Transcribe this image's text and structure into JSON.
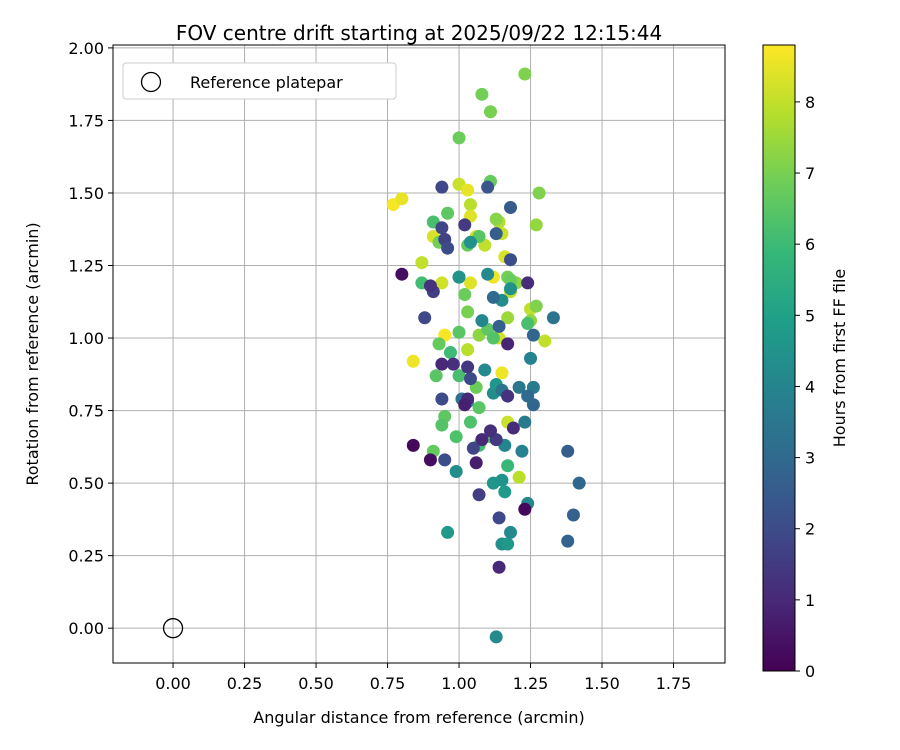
{
  "chart_data": {
    "type": "scatter",
    "title": "FOV centre drift starting at 2025/09/22 12:15:44",
    "xlabel": "Angular distance from reference (arcmin)",
    "ylabel": "Rotation from reference (arcmin)",
    "xlim": [
      -0.21,
      1.93
    ],
    "ylim": [
      -0.12,
      2.01
    ],
    "xticks": [
      "0.00",
      "0.25",
      "0.50",
      "0.75",
      "1.00",
      "1.25",
      "1.50",
      "1.75"
    ],
    "yticks": [
      "0.00",
      "0.25",
      "0.50",
      "0.75",
      "1.00",
      "1.25",
      "1.50",
      "1.75",
      "2.00"
    ],
    "grid": true,
    "legend": {
      "label": "Reference platepar",
      "location": "top-left"
    },
    "reference_point": {
      "x": 0.0,
      "y": 0.0
    },
    "colorbar": {
      "label": "Hours from first FF file",
      "colormap": "viridis",
      "range": [
        0,
        8.8
      ],
      "ticks": [
        "0",
        "1",
        "2",
        "3",
        "4",
        "5",
        "6",
        "7",
        "8"
      ]
    },
    "points": [
      {
        "x": 0.77,
        "y": 1.46,
        "t": 8.7
      },
      {
        "x": 0.8,
        "y": 1.48,
        "t": 8.5
      },
      {
        "x": 0.84,
        "y": 0.92,
        "t": 8.6
      },
      {
        "x": 0.87,
        "y": 1.26,
        "t": 8.0
      },
      {
        "x": 0.91,
        "y": 1.35,
        "t": 8.3
      },
      {
        "x": 0.94,
        "y": 1.19,
        "t": 8.2
      },
      {
        "x": 0.95,
        "y": 1.01,
        "t": 8.7
      },
      {
        "x": 1.0,
        "y": 1.53,
        "t": 8.1
      },
      {
        "x": 1.03,
        "y": 1.51,
        "t": 8.5
      },
      {
        "x": 1.04,
        "y": 1.46,
        "t": 7.9
      },
      {
        "x": 1.04,
        "y": 1.42,
        "t": 8.4
      },
      {
        "x": 1.06,
        "y": 1.35,
        "t": 8.2
      },
      {
        "x": 1.09,
        "y": 1.32,
        "t": 8.0
      },
      {
        "x": 1.12,
        "y": 1.21,
        "t": 8.6
      },
      {
        "x": 1.14,
        "y": 1.4,
        "t": 7.8
      },
      {
        "x": 1.15,
        "y": 1.36,
        "t": 8.1
      },
      {
        "x": 1.16,
        "y": 1.28,
        "t": 8.3
      },
      {
        "x": 1.18,
        "y": 1.16,
        "t": 8.0
      },
      {
        "x": 1.04,
        "y": 1.19,
        "t": 8.4
      },
      {
        "x": 1.03,
        "y": 0.96,
        "t": 7.9
      },
      {
        "x": 1.14,
        "y": 1.0,
        "t": 8.2
      },
      {
        "x": 1.15,
        "y": 0.88,
        "t": 8.6
      },
      {
        "x": 1.17,
        "y": 0.71,
        "t": 8.1
      },
      {
        "x": 1.21,
        "y": 0.52,
        "t": 7.9
      },
      {
        "x": 1.25,
        "y": 1.1,
        "t": 8.0
      },
      {
        "x": 1.3,
        "y": 0.99,
        "t": 8.0
      },
      {
        "x": 1.08,
        "y": 1.84,
        "t": 6.9
      },
      {
        "x": 1.11,
        "y": 1.78,
        "t": 7.0
      },
      {
        "x": 1.23,
        "y": 1.91,
        "t": 7.1
      },
      {
        "x": 1.0,
        "y": 1.69,
        "t": 6.8
      },
      {
        "x": 1.11,
        "y": 1.54,
        "t": 6.7
      },
      {
        "x": 1.28,
        "y": 1.5,
        "t": 7.1
      },
      {
        "x": 0.96,
        "y": 1.43,
        "t": 6.6
      },
      {
        "x": 1.27,
        "y": 1.39,
        "t": 7.4
      },
      {
        "x": 0.93,
        "y": 1.33,
        "t": 6.9
      },
      {
        "x": 1.03,
        "y": 1.32,
        "t": 6.7
      },
      {
        "x": 1.13,
        "y": 1.41,
        "t": 7.2
      },
      {
        "x": 1.17,
        "y": 1.21,
        "t": 6.9
      },
      {
        "x": 1.2,
        "y": 1.19,
        "t": 7.3
      },
      {
        "x": 1.02,
        "y": 1.15,
        "t": 6.8
      },
      {
        "x": 1.03,
        "y": 1.09,
        "t": 7.0
      },
      {
        "x": 1.07,
        "y": 1.01,
        "t": 7.3
      },
      {
        "x": 1.1,
        "y": 1.03,
        "t": 6.6
      },
      {
        "x": 1.17,
        "y": 1.07,
        "t": 7.5
      },
      {
        "x": 1.25,
        "y": 1.06,
        "t": 7.3
      },
      {
        "x": 1.27,
        "y": 1.11,
        "t": 7.1
      },
      {
        "x": 0.93,
        "y": 0.98,
        "t": 6.7
      },
      {
        "x": 0.97,
        "y": 0.95,
        "t": 6.0
      },
      {
        "x": 0.92,
        "y": 0.87,
        "t": 6.5
      },
      {
        "x": 1.0,
        "y": 0.87,
        "t": 6.2
      },
      {
        "x": 1.06,
        "y": 0.83,
        "t": 6.8
      },
      {
        "x": 0.95,
        "y": 0.73,
        "t": 6.6
      },
      {
        "x": 1.07,
        "y": 0.76,
        "t": 6.5
      },
      {
        "x": 0.94,
        "y": 0.7,
        "t": 6.4
      },
      {
        "x": 1.04,
        "y": 0.71,
        "t": 6.3
      },
      {
        "x": 0.99,
        "y": 0.66,
        "t": 6.3
      },
      {
        "x": 0.91,
        "y": 0.61,
        "t": 6.7
      },
      {
        "x": 1.07,
        "y": 0.63,
        "t": 6.1
      },
      {
        "x": 1.11,
        "y": 0.66,
        "t": 6.4
      },
      {
        "x": 1.17,
        "y": 0.56,
        "t": 5.9
      },
      {
        "x": 1.07,
        "y": 1.35,
        "t": 6.5
      },
      {
        "x": 0.91,
        "y": 1.4,
        "t": 6.2
      },
      {
        "x": 0.87,
        "y": 1.19,
        "t": 6.1
      },
      {
        "x": 1.0,
        "y": 1.21,
        "t": 6.0
      },
      {
        "x": 1.12,
        "y": 1.0,
        "t": 6.4
      },
      {
        "x": 1.0,
        "y": 1.02,
        "t": 6.5
      },
      {
        "x": 1.18,
        "y": 1.2,
        "t": 6.8
      },
      {
        "x": 1.24,
        "y": 1.05,
        "t": 6.2
      },
      {
        "x": 0.99,
        "y": 0.54,
        "t": 4.3
      },
      {
        "x": 0.96,
        "y": 0.33,
        "t": 4.7
      },
      {
        "x": 1.12,
        "y": 0.5,
        "t": 4.6
      },
      {
        "x": 1.15,
        "y": 0.51,
        "t": 4.5
      },
      {
        "x": 1.16,
        "y": 0.47,
        "t": 4.8
      },
      {
        "x": 1.15,
        "y": 0.29,
        "t": 4.4
      },
      {
        "x": 1.17,
        "y": 0.29,
        "t": 4.7
      },
      {
        "x": 1.18,
        "y": 0.33,
        "t": 4.2
      },
      {
        "x": 1.24,
        "y": 0.43,
        "t": 4.1
      },
      {
        "x": 1.13,
        "y": -0.03,
        "t": 4.2
      },
      {
        "x": 1.03,
        "y": 0.78,
        "t": 4.4
      },
      {
        "x": 1.12,
        "y": 0.81,
        "t": 4.3
      },
      {
        "x": 1.13,
        "y": 0.84,
        "t": 4.6
      },
      {
        "x": 1.09,
        "y": 0.89,
        "t": 4.2
      },
      {
        "x": 1.16,
        "y": 0.63,
        "t": 4.0
      },
      {
        "x": 1.23,
        "y": 0.71,
        "t": 3.6
      },
      {
        "x": 1.22,
        "y": 0.61,
        "t": 3.9
      },
      {
        "x": 1.21,
        "y": 0.83,
        "t": 3.5
      },
      {
        "x": 1.25,
        "y": 0.93,
        "t": 3.9
      },
      {
        "x": 1.26,
        "y": 0.83,
        "t": 3.6
      },
      {
        "x": 1.08,
        "y": 1.06,
        "t": 4.1
      },
      {
        "x": 1.1,
        "y": 1.22,
        "t": 4.2
      },
      {
        "x": 1.0,
        "y": 1.21,
        "t": 4.5
      },
      {
        "x": 1.15,
        "y": 1.13,
        "t": 4.3
      },
      {
        "x": 1.18,
        "y": 1.17,
        "t": 4.4
      },
      {
        "x": 1.04,
        "y": 1.33,
        "t": 4.4
      },
      {
        "x": 1.01,
        "y": 0.79,
        "t": 3.3
      },
      {
        "x": 1.33,
        "y": 1.07,
        "t": 3.4
      },
      {
        "x": 1.15,
        "y": 0.82,
        "t": 3.4
      },
      {
        "x": 1.26,
        "y": 0.77,
        "t": 2.9
      },
      {
        "x": 1.24,
        "y": 0.8,
        "t": 3.0
      },
      {
        "x": 1.42,
        "y": 0.5,
        "t": 2.9
      },
      {
        "x": 1.4,
        "y": 0.39,
        "t": 2.7
      },
      {
        "x": 1.38,
        "y": 0.61,
        "t": 2.6
      },
      {
        "x": 1.38,
        "y": 0.3,
        "t": 2.8
      },
      {
        "x": 1.12,
        "y": 1.14,
        "t": 3.0
      },
      {
        "x": 1.14,
        "y": 1.04,
        "t": 2.7
      },
      {
        "x": 1.26,
        "y": 1.01,
        "t": 2.9
      },
      {
        "x": 1.13,
        "y": 1.36,
        "t": 2.6
      },
      {
        "x": 1.18,
        "y": 1.45,
        "t": 2.5
      },
      {
        "x": 1.18,
        "y": 1.27,
        "t": 2.1
      },
      {
        "x": 1.1,
        "y": 1.52,
        "t": 2.3
      },
      {
        "x": 0.94,
        "y": 1.52,
        "t": 1.9
      },
      {
        "x": 0.95,
        "y": 1.34,
        "t": 1.7
      },
      {
        "x": 0.94,
        "y": 1.38,
        "t": 1.8
      },
      {
        "x": 0.96,
        "y": 1.31,
        "t": 2.0
      },
      {
        "x": 0.91,
        "y": 1.16,
        "t": 1.6
      },
      {
        "x": 0.88,
        "y": 1.07,
        "t": 1.9
      },
      {
        "x": 1.02,
        "y": 1.39,
        "t": 1.5
      },
      {
        "x": 1.04,
        "y": 0.86,
        "t": 2.0
      },
      {
        "x": 0.94,
        "y": 0.79,
        "t": 2.0
      },
      {
        "x": 0.95,
        "y": 0.58,
        "t": 2.1
      },
      {
        "x": 1.05,
        "y": 0.62,
        "t": 1.8
      },
      {
        "x": 1.14,
        "y": 0.38,
        "t": 1.9
      },
      {
        "x": 1.07,
        "y": 0.46,
        "t": 1.6
      },
      {
        "x": 1.13,
        "y": 0.65,
        "t": 1.5
      },
      {
        "x": 1.11,
        "y": 0.68,
        "t": 1.2
      },
      {
        "x": 1.03,
        "y": 0.9,
        "t": 1.4
      },
      {
        "x": 1.03,
        "y": 0.79,
        "t": 1.1
      },
      {
        "x": 0.98,
        "y": 0.91,
        "t": 1.2
      },
      {
        "x": 0.94,
        "y": 0.91,
        "t": 1.0
      },
      {
        "x": 1.17,
        "y": 0.8,
        "t": 1.3
      },
      {
        "x": 1.19,
        "y": 0.69,
        "t": 1.1
      },
      {
        "x": 1.08,
        "y": 0.65,
        "t": 1.0
      },
      {
        "x": 1.14,
        "y": 0.21,
        "t": 1.0
      },
      {
        "x": 1.17,
        "y": 0.98,
        "t": 0.9
      },
      {
        "x": 1.24,
        "y": 1.19,
        "t": 1.1
      },
      {
        "x": 0.9,
        "y": 1.18,
        "t": 1.3
      },
      {
        "x": 1.02,
        "y": 0.77,
        "t": 0.8
      },
      {
        "x": 1.06,
        "y": 0.57,
        "t": 0.7
      },
      {
        "x": 0.9,
        "y": 0.58,
        "t": 0.3
      },
      {
        "x": 0.84,
        "y": 0.63,
        "t": 0.2
      },
      {
        "x": 0.8,
        "y": 1.22,
        "t": 0.3
      },
      {
        "x": 1.23,
        "y": 0.41,
        "t": 0.2
      }
    ]
  }
}
